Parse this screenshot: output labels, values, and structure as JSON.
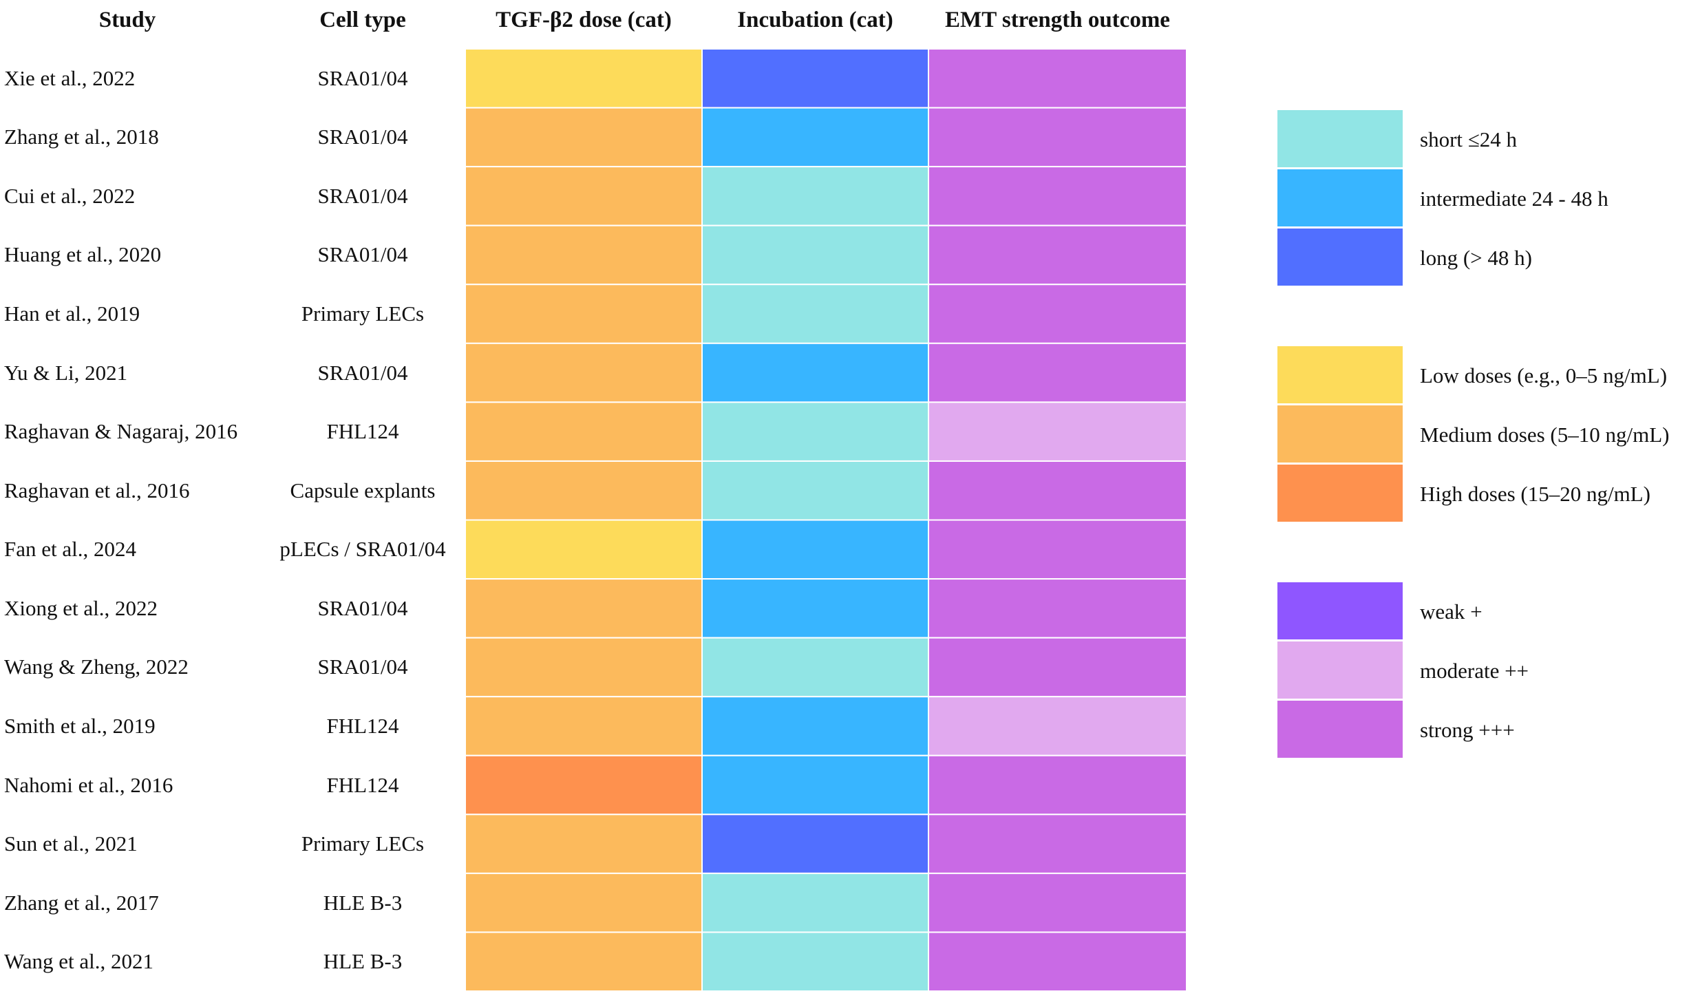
{
  "chart_data": {
    "type": "heatmap",
    "title": "",
    "columns": [
      "Study",
      "Cell type",
      "TGF-β2 dose (cat)",
      "Incubation (cat)",
      "EMT strength outcome"
    ],
    "rows": [
      {
        "study": "Xie et al., 2022",
        "cell_type": "SRA01/04",
        "dose": "low",
        "incubation": "long",
        "emt": "strong"
      },
      {
        "study": "Zhang et al., 2018",
        "cell_type": "SRA01/04",
        "dose": "medium",
        "incubation": "intermediate",
        "emt": "strong"
      },
      {
        "study": "Cui et al., 2022",
        "cell_type": "SRA01/04",
        "dose": "medium",
        "incubation": "short",
        "emt": "strong"
      },
      {
        "study": "Huang et al., 2020",
        "cell_type": "SRA01/04",
        "dose": "medium",
        "incubation": "short",
        "emt": "strong"
      },
      {
        "study": "Han et al., 2019",
        "cell_type": "Primary LECs",
        "dose": "medium",
        "incubation": "short",
        "emt": "strong"
      },
      {
        "study": "Yu & Li, 2021",
        "cell_type": "SRA01/04",
        "dose": "medium",
        "incubation": "intermediate",
        "emt": "strong"
      },
      {
        "study": "Raghavan & Nagaraj, 2016",
        "cell_type": "FHL124",
        "dose": "medium",
        "incubation": "short",
        "emt": "moderate"
      },
      {
        "study": "Raghavan et al., 2016",
        "cell_type": "Capsule explants",
        "dose": "medium",
        "incubation": "short",
        "emt": "strong"
      },
      {
        "study": "Fan et al., 2024",
        "cell_type": "pLECs / SRA01/04",
        "dose": "low",
        "incubation": "intermediate",
        "emt": "strong"
      },
      {
        "study": "Xiong et al., 2022",
        "cell_type": "SRA01/04",
        "dose": "medium",
        "incubation": "intermediate",
        "emt": "strong"
      },
      {
        "study": "Wang & Zheng, 2022",
        "cell_type": "SRA01/04",
        "dose": "medium",
        "incubation": "short",
        "emt": "strong"
      },
      {
        "study": "Smith et al., 2019",
        "cell_type": "FHL124",
        "dose": "medium",
        "incubation": "intermediate",
        "emt": "moderate"
      },
      {
        "study": "Nahomi et al., 2016",
        "cell_type": "FHL124",
        "dose": "high",
        "incubation": "intermediate",
        "emt": "strong"
      },
      {
        "study": "Sun et al., 2021",
        "cell_type": "Primary LECs",
        "dose": "medium",
        "incubation": "long",
        "emt": "strong"
      },
      {
        "study": "Zhang et al., 2017",
        "cell_type": "HLE B-3",
        "dose": "medium",
        "incubation": "short",
        "emt": "strong"
      },
      {
        "study": "Wang et al., 2021",
        "cell_type": "HLE B-3",
        "dose": "medium",
        "incubation": "short",
        "emt": "strong"
      }
    ],
    "legend": [
      {
        "group": "incubation",
        "items": [
          {
            "key": "short",
            "label": "short ≤24 h",
            "color": "#91E5E5"
          },
          {
            "key": "intermediate",
            "label": "intermediate 24 - 48 h",
            "color": "#38B5FF"
          },
          {
            "key": "long",
            "label": "long (> 48 h)",
            "color": "#516FFF"
          }
        ]
      },
      {
        "group": "dose",
        "items": [
          {
            "key": "low",
            "label": "Low doses (e.g., 0–5 ng/mL)",
            "color": "#FDDB5A"
          },
          {
            "key": "medium",
            "label": "Medium doses (5–10 ng/mL)",
            "color": "#FCBA5C"
          },
          {
            "key": "high",
            "label": "High doses (15–20 ng/mL)",
            "color": "#FE914E"
          }
        ]
      },
      {
        "group": "emt",
        "items": [
          {
            "key": "weak",
            "label": "weak +",
            "color": "#8F56FF"
          },
          {
            "key": "moderate",
            "label": "moderate ++",
            "color": "#E1A9EF"
          },
          {
            "key": "strong",
            "label": "strong +++",
            "color": "#C96AE5"
          }
        ]
      }
    ],
    "legend_position": "right"
  }
}
